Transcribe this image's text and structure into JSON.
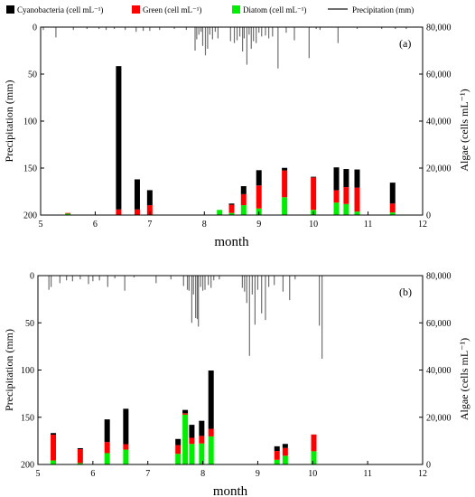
{
  "colors": {
    "cyanobacteria": "#000000",
    "green": "#ff0000",
    "diatom": "#00ee00",
    "precipitation": "#6f6f6f"
  },
  "legend": [
    {
      "label": "Cyanobacteria (cell mL⁻¹)",
      "key": "cyanobacteria"
    },
    {
      "label": "Green (cell mL⁻¹)",
      "key": "green"
    },
    {
      "label": "Diatom (cell mL⁻¹)",
      "key": "diatom"
    },
    {
      "label": "Precipitation (mm)",
      "key": "precipitation"
    }
  ],
  "chart_data": [
    {
      "panel": "(a)",
      "type": "bar",
      "xlabel": "month",
      "ylabel_left": "Precipitation (mm)",
      "ylabel_right": "Algae (cells mL⁻¹)",
      "xlim": [
        5,
        12
      ],
      "xticks": [
        "5",
        "6",
        "7",
        "8",
        "9",
        "10",
        "11",
        "12"
      ],
      "precip_ylim": [
        200,
        0
      ],
      "precip_yticks": [
        "0",
        "50",
        "100",
        "150",
        "200"
      ],
      "algae_ylim": [
        0,
        80000
      ],
      "algae_yticks": [
        "0",
        "20,000",
        "40,000",
        "60,000",
        "80,000"
      ],
      "algae": [
        {
          "month": 5.5,
          "diatom": 600,
          "green": 300,
          "cyanobacteria": 0
        },
        {
          "month": 6.43,
          "diatom": 0,
          "green": 2400,
          "cyanobacteria": 61000
        },
        {
          "month": 6.77,
          "diatom": 0,
          "green": 2400,
          "cyanobacteria": 12800
        },
        {
          "month": 7.0,
          "diatom": 0,
          "green": 4200,
          "cyanobacteria": 6400
        },
        {
          "month": 8.28,
          "diatom": 2200,
          "green": 0,
          "cyanobacteria": 0
        },
        {
          "month": 8.5,
          "diatom": 900,
          "green": 3500,
          "cyanobacteria": 500
        },
        {
          "month": 8.72,
          "diatom": 4200,
          "green": 4700,
          "cyanobacteria": 3400
        },
        {
          "month": 9.0,
          "diatom": 2800,
          "green": 9800,
          "cyanobacteria": 6500
        },
        {
          "month": 9.47,
          "diatom": 7600,
          "green": 11400,
          "cyanobacteria": 1100
        },
        {
          "month": 10.0,
          "diatom": 2200,
          "green": 13800,
          "cyanobacteria": 300
        },
        {
          "month": 10.42,
          "diatom": 5300,
          "green": 5300,
          "cyanobacteria": 9700
        },
        {
          "month": 10.6,
          "diatom": 4700,
          "green": 7200,
          "cyanobacteria": 7700
        },
        {
          "month": 10.8,
          "diatom": 1500,
          "green": 10200,
          "cyanobacteria": 7700
        },
        {
          "month": 11.45,
          "diatom": 1100,
          "green": 3800,
          "cyanobacteria": 8900
        }
      ],
      "precipitation": [
        {
          "month": 5.05,
          "mm": 3
        },
        {
          "month": 5.28,
          "mm": 11
        },
        {
          "month": 5.6,
          "mm": 3
        },
        {
          "month": 5.85,
          "mm": 2
        },
        {
          "month": 6.07,
          "mm": 2
        },
        {
          "month": 6.2,
          "mm": 3
        },
        {
          "month": 6.35,
          "mm": 2
        },
        {
          "month": 6.55,
          "mm": 3
        },
        {
          "month": 6.75,
          "mm": 5
        },
        {
          "month": 6.88,
          "mm": 4
        },
        {
          "month": 7.0,
          "mm": 4
        },
        {
          "month": 7.18,
          "mm": 3
        },
        {
          "month": 7.45,
          "mm": 2
        },
        {
          "month": 7.67,
          "mm": 3
        },
        {
          "month": 7.83,
          "mm": 25
        },
        {
          "month": 7.86,
          "mm": 13
        },
        {
          "month": 7.9,
          "mm": 8
        },
        {
          "month": 7.94,
          "mm": 5
        },
        {
          "month": 7.97,
          "mm": 20
        },
        {
          "month": 8.02,
          "mm": 30
        },
        {
          "month": 8.06,
          "mm": 23
        },
        {
          "month": 8.1,
          "mm": 8
        },
        {
          "month": 8.15,
          "mm": 13
        },
        {
          "month": 8.2,
          "mm": 5
        },
        {
          "month": 8.25,
          "mm": 12
        },
        {
          "month": 8.48,
          "mm": 15
        },
        {
          "month": 8.55,
          "mm": 17
        },
        {
          "month": 8.6,
          "mm": 14
        },
        {
          "month": 8.65,
          "mm": 10
        },
        {
          "month": 8.7,
          "mm": 26
        },
        {
          "month": 8.73,
          "mm": 12
        },
        {
          "month": 8.78,
          "mm": 40
        },
        {
          "month": 8.82,
          "mm": 8
        },
        {
          "month": 8.86,
          "mm": 23
        },
        {
          "month": 8.9,
          "mm": 15
        },
        {
          "month": 8.95,
          "mm": 17
        },
        {
          "month": 9.0,
          "mm": 6
        },
        {
          "month": 9.05,
          "mm": 10
        },
        {
          "month": 9.12,
          "mm": 9
        },
        {
          "month": 9.18,
          "mm": 12
        },
        {
          "month": 9.25,
          "mm": 10
        },
        {
          "month": 9.35,
          "mm": 44
        },
        {
          "month": 9.5,
          "mm": 6
        },
        {
          "month": 9.65,
          "mm": 14
        },
        {
          "month": 9.92,
          "mm": 33
        },
        {
          "month": 10.05,
          "mm": 2
        },
        {
          "month": 10.12,
          "mm": 3
        },
        {
          "month": 10.45,
          "mm": 17
        },
        {
          "month": 10.8,
          "mm": 2
        },
        {
          "month": 11.25,
          "mm": 2
        },
        {
          "month": 11.5,
          "mm": 2
        },
        {
          "month": 11.7,
          "mm": 2
        }
      ]
    },
    {
      "panel": "(b)",
      "type": "bar",
      "xlabel": "month",
      "ylabel_left": "Precipitation (mm)",
      "ylabel_right": "Algae (cells mL⁻¹)",
      "xlim": [
        5,
        12
      ],
      "xticks": [
        "5",
        "6",
        "7",
        "8",
        "9",
        "10",
        "11",
        "12"
      ],
      "precip_ylim": [
        200,
        0
      ],
      "precip_yticks": [
        "0",
        "50",
        "100",
        "150",
        "200"
      ],
      "algae_ylim": [
        0,
        80000
      ],
      "algae_yticks": [
        "0",
        "20,000",
        "40,000",
        "60,000",
        "80,000"
      ],
      "algae": [
        {
          "month": 5.28,
          "diatom": 1700,
          "green": 10900,
          "cyanobacteria": 700
        },
        {
          "month": 5.77,
          "diatom": 600,
          "green": 5900,
          "cyanobacteria": 400
        },
        {
          "month": 6.26,
          "diatom": 4800,
          "green": 4700,
          "cyanobacteria": 9600
        },
        {
          "month": 6.6,
          "diatom": 6300,
          "green": 2300,
          "cyanobacteria": 15000
        },
        {
          "month": 7.55,
          "diatom": 4500,
          "green": 3700,
          "cyanobacteria": 2600
        },
        {
          "month": 7.68,
          "diatom": 21100,
          "green": 600,
          "cyanobacteria": 1400
        },
        {
          "month": 7.8,
          "diatom": 8700,
          "green": 2600,
          "cyanobacteria": 5500
        },
        {
          "month": 7.98,
          "diatom": 8900,
          "green": 3200,
          "cyanobacteria": 6400
        },
        {
          "month": 8.15,
          "diatom": 11900,
          "green": 3200,
          "cyanobacteria": 24700
        },
        {
          "month": 9.35,
          "diatom": 2000,
          "green": 3700,
          "cyanobacteria": 2000
        },
        {
          "month": 9.5,
          "diatom": 3700,
          "green": 3300,
          "cyanobacteria": 1700
        },
        {
          "month": 10.02,
          "diatom": 5600,
          "green": 7100,
          "cyanobacteria": 0
        }
      ],
      "precipitation": [
        {
          "month": 5.2,
          "mm": 15
        },
        {
          "month": 5.24,
          "mm": 12
        },
        {
          "month": 5.4,
          "mm": 8
        },
        {
          "month": 5.52,
          "mm": 5
        },
        {
          "month": 5.63,
          "mm": 6
        },
        {
          "month": 5.77,
          "mm": 4
        },
        {
          "month": 5.92,
          "mm": 9
        },
        {
          "month": 6.0,
          "mm": 6
        },
        {
          "month": 6.12,
          "mm": 5
        },
        {
          "month": 6.27,
          "mm": 12
        },
        {
          "month": 6.4,
          "mm": 3
        },
        {
          "month": 6.58,
          "mm": 16
        },
        {
          "month": 6.75,
          "mm": 2
        },
        {
          "month": 7.15,
          "mm": 8
        },
        {
          "month": 7.42,
          "mm": 4
        },
        {
          "month": 7.65,
          "mm": 11
        },
        {
          "month": 7.72,
          "mm": 15
        },
        {
          "month": 7.75,
          "mm": 16
        },
        {
          "month": 7.8,
          "mm": 50
        },
        {
          "month": 7.83,
          "mm": 20
        },
        {
          "month": 7.87,
          "mm": 45
        },
        {
          "month": 7.9,
          "mm": 46
        },
        {
          "month": 7.92,
          "mm": 54
        },
        {
          "month": 7.96,
          "mm": 12
        },
        {
          "month": 8.0,
          "mm": 16
        },
        {
          "month": 8.04,
          "mm": 15
        },
        {
          "month": 8.1,
          "mm": 10
        },
        {
          "month": 8.15,
          "mm": 13
        },
        {
          "month": 8.2,
          "mm": 5
        },
        {
          "month": 8.3,
          "mm": 4
        },
        {
          "month": 8.72,
          "mm": 13
        },
        {
          "month": 8.76,
          "mm": 17
        },
        {
          "month": 8.8,
          "mm": 29
        },
        {
          "month": 8.85,
          "mm": 85
        },
        {
          "month": 8.9,
          "mm": 20
        },
        {
          "month": 8.95,
          "mm": 52
        },
        {
          "month": 9.0,
          "mm": 15
        },
        {
          "month": 9.07,
          "mm": 40
        },
        {
          "month": 9.14,
          "mm": 47
        },
        {
          "month": 9.2,
          "mm": 12
        },
        {
          "month": 9.3,
          "mm": 10
        },
        {
          "month": 9.46,
          "mm": 17
        },
        {
          "month": 9.58,
          "mm": 26
        },
        {
          "month": 9.68,
          "mm": 4
        },
        {
          "month": 10.12,
          "mm": 53
        },
        {
          "month": 10.17,
          "mm": 88
        }
      ]
    }
  ]
}
